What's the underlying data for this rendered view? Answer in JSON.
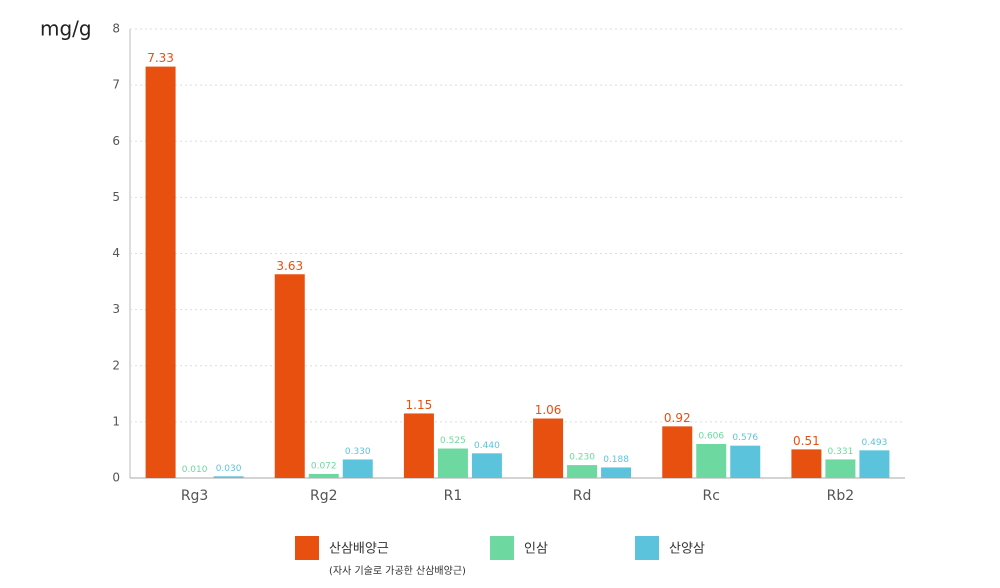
{
  "chart_data": {
    "type": "bar",
    "y_label": "mg/g",
    "categories": [
      "Rg3",
      "Rg2",
      "R1",
      "Rd",
      "Rc",
      "Rb2"
    ],
    "series": [
      {
        "name": "산삼배양근",
        "note": "(자사 기술로 가공한 산삼배양근)",
        "color": "#e8500f",
        "values": [
          7.33,
          3.63,
          1.15,
          1.06,
          0.92,
          0.51
        ]
      },
      {
        "name": "인삼",
        "color": "#6dd9a0",
        "values": [
          0.01,
          0.072,
          0.525,
          0.23,
          0.606,
          0.331
        ],
        "value_labels": [
          "0.010",
          "0.072",
          "0.525",
          "0.230",
          "0.606",
          "0.331"
        ]
      },
      {
        "name": "산양삼",
        "color": "#5bc4dc",
        "values": [
          0.03,
          0.33,
          0.44,
          0.188,
          0.576,
          0.493
        ],
        "value_labels": [
          "0.030",
          "0.330",
          "0.440",
          "0.188",
          "0.576",
          "0.493"
        ]
      }
    ],
    "ylim": [
      0,
      8
    ],
    "yticks": [
      0,
      1,
      2,
      3,
      4,
      5,
      6,
      7,
      8
    ],
    "grid": true
  }
}
